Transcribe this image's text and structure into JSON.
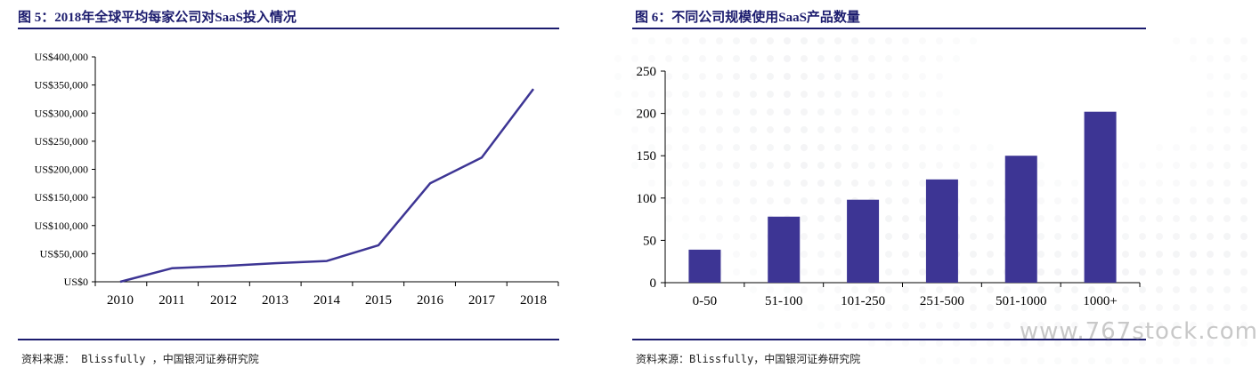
{
  "fig5": {
    "title": "图 5：2018年全球平均每家公司对SaaS投入情况",
    "source": "资料来源： Blissfully ，中国银河证券研究院",
    "chart_data": {
      "type": "line",
      "categories": [
        "2010",
        "2011",
        "2012",
        "2013",
        "2014",
        "2015",
        "2016",
        "2017",
        "2018"
      ],
      "values": [
        0,
        24000,
        28000,
        33000,
        37000,
        65000,
        175000,
        221000,
        343000
      ],
      "y_ticks": [
        0,
        50000,
        100000,
        150000,
        200000,
        250000,
        300000,
        350000,
        400000
      ],
      "y_tick_labels": [
        "US$0",
        "US$50,000",
        "US$100,000",
        "US$150,000",
        "US$200,000",
        "US$250,000",
        "US$300,000",
        "US$350,000",
        "US$400,000"
      ],
      "ylim": [
        0,
        400000
      ],
      "line_color": "#3d3594",
      "grid": false,
      "legend": "none"
    }
  },
  "fig6": {
    "title": "图 6：不同公司规模使用SaaS产品数量",
    "source": "资料来源：Blissfully，中国银河证券研究院",
    "chart_data": {
      "type": "bar",
      "categories": [
        "0-50",
        "51-100",
        "101-250",
        "251-500",
        "501-1000",
        "1000+"
      ],
      "values": [
        39,
        78,
        98,
        122,
        150,
        202
      ],
      "y_ticks": [
        0,
        50,
        100,
        150,
        200,
        250
      ],
      "y_tick_labels": [
        "0",
        "50",
        "100",
        "150",
        "200",
        "250"
      ],
      "ylim": [
        0,
        250
      ],
      "bar_color": "#3d3594",
      "grid": false,
      "legend": "none"
    }
  },
  "watermark": "www.767stock.com",
  "colors": {
    "rule": "#1c1c6e",
    "title": "#1c1c6e"
  }
}
